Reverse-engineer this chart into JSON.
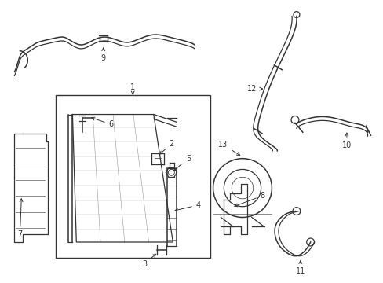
{
  "bg_color": "#ffffff",
  "line_color": "#333333",
  "figure_width": 4.89,
  "figure_height": 3.6,
  "dpi": 100
}
